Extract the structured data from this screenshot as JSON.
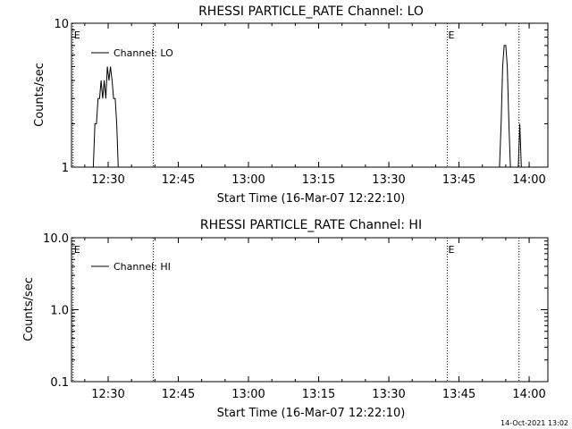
{
  "footer": {
    "timestamp": "14-Oct-2021 13:02"
  },
  "chart_data": [
    {
      "type": "line",
      "title": "RHESSI PARTICLE_RATE Channel: LO",
      "xlabel": "Start Time (16-Mar-07 12:22:10)",
      "ylabel": "Counts/sec",
      "xscale": "time",
      "yscale": "log",
      "xlim": [
        "12:22:10",
        "14:04:00"
      ],
      "ylim": [
        1,
        10
      ],
      "x_ticks": [
        "12:30",
        "12:45",
        "13:00",
        "13:15",
        "13:30",
        "13:45",
        "14:00"
      ],
      "y_ticks": [
        "1",
        "10"
      ],
      "legend": {
        "entries": [
          "Channel: LO"
        ],
        "placement": "top-left"
      },
      "markers": [
        {
          "time": "12:22:30",
          "label": "E"
        },
        {
          "time": "12:39:40",
          "label": ""
        },
        {
          "time": "13:42:30",
          "label": "E"
        },
        {
          "time": "13:57:50",
          "label": ""
        }
      ],
      "series": [
        {
          "name": "Channel: LO",
          "x": [
            "12:26:50",
            "12:27:10",
            "12:27:30",
            "12:27:50",
            "12:28:10",
            "12:28:30",
            "12:28:50",
            "12:29:10",
            "12:29:30",
            "12:29:50",
            "12:30:10",
            "12:30:30",
            "12:30:50",
            "12:31:10",
            "12:31:30",
            "12:31:50",
            "12:32:10",
            "12:32:30",
            "13:53:40",
            "13:54:00",
            "13:54:20",
            "13:54:40",
            "13:55:00",
            "13:55:20",
            "13:55:40",
            "13:56:00",
            "13:57:40",
            "13:58:00",
            "13:58:20"
          ],
          "y": [
            1,
            2,
            2,
            3,
            3,
            4,
            3,
            4,
            3,
            5,
            4,
            5,
            4,
            3,
            3,
            2,
            1,
            1,
            1,
            2,
            5,
            7,
            7,
            5,
            2,
            1,
            1,
            2,
            1
          ]
        }
      ]
    },
    {
      "type": "line",
      "title": "RHESSI PARTICLE_RATE Channel: HI",
      "xlabel": "Start Time (16-Mar-07 12:22:10)",
      "ylabel": "Counts/sec",
      "xscale": "time",
      "yscale": "log",
      "xlim": [
        "12:22:10",
        "14:04:00"
      ],
      "ylim": [
        0.1,
        10
      ],
      "x_ticks": [
        "12:30",
        "12:45",
        "13:00",
        "13:15",
        "13:30",
        "13:45",
        "14:00"
      ],
      "y_ticks": [
        "0.1",
        "1.0",
        "10.0"
      ],
      "legend": {
        "entries": [
          "Channel: HI"
        ],
        "placement": "top-left"
      },
      "markers": [
        {
          "time": "12:22:30",
          "label": "E"
        },
        {
          "time": "12:39:40",
          "label": ""
        },
        {
          "time": "13:42:30",
          "label": "E"
        },
        {
          "time": "13:57:50",
          "label": ""
        }
      ],
      "series": [
        {
          "name": "Channel: HI",
          "x": [],
          "y": []
        }
      ]
    }
  ]
}
